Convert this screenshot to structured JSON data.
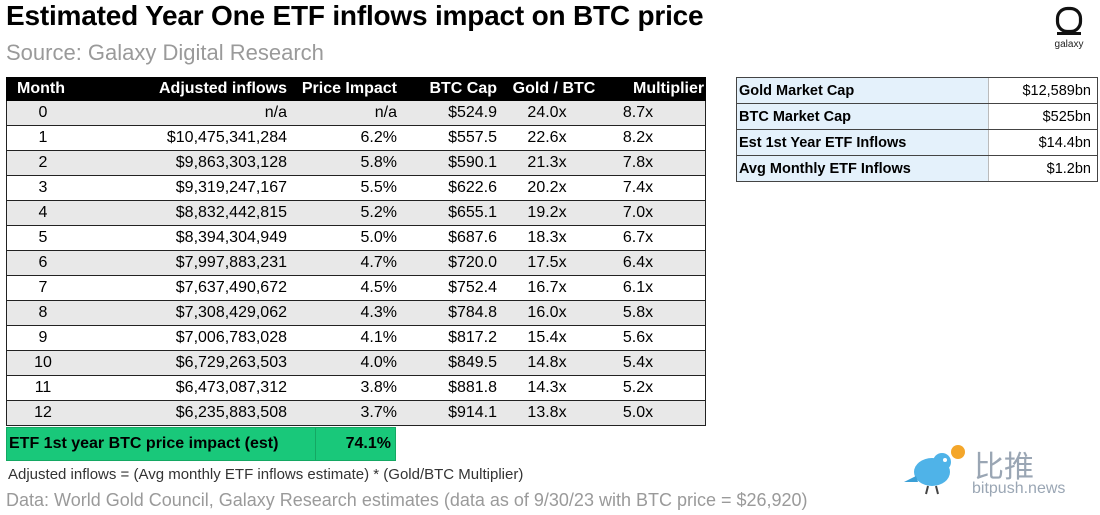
{
  "title": "Estimated Year One ETF inflows impact on BTC price",
  "subtitle": "Source: Galaxy Digital Research",
  "logo": {
    "icon": "galaxy-logo-icon",
    "label": "galaxy"
  },
  "table": {
    "headers": [
      "Month",
      "Adjusted inflows",
      "Price Impact",
      "BTC Cap",
      "Gold / BTC",
      "Multiplier"
    ],
    "rows": [
      [
        "0",
        "n/a",
        "n/a",
        "$524.9",
        "24.0x",
        "8.7x"
      ],
      [
        "1",
        "$10,475,341,284",
        "6.2%",
        "$557.5",
        "22.6x",
        "8.2x"
      ],
      [
        "2",
        "$9,863,303,128",
        "5.8%",
        "$590.1",
        "21.3x",
        "7.8x"
      ],
      [
        "3",
        "$9,319,247,167",
        "5.5%",
        "$622.6",
        "20.2x",
        "7.4x"
      ],
      [
        "4",
        "$8,832,442,815",
        "5.2%",
        "$655.1",
        "19.2x",
        "7.0x"
      ],
      [
        "5",
        "$8,394,304,949",
        "5.0%",
        "$687.6",
        "18.3x",
        "6.7x"
      ],
      [
        "6",
        "$7,997,883,231",
        "4.7%",
        "$720.0",
        "17.5x",
        "6.4x"
      ],
      [
        "7",
        "$7,637,490,672",
        "4.5%",
        "$752.4",
        "16.7x",
        "6.1x"
      ],
      [
        "8",
        "$7,308,429,062",
        "4.3%",
        "$784.8",
        "16.0x",
        "5.8x"
      ],
      [
        "9",
        "$7,006,783,028",
        "4.1%",
        "$817.2",
        "15.4x",
        "5.6x"
      ],
      [
        "10",
        "$6,729,263,503",
        "4.0%",
        "$849.5",
        "14.8x",
        "5.4x"
      ],
      [
        "11",
        "$6,473,087,312",
        "3.8%",
        "$881.8",
        "14.3x",
        "5.2x"
      ],
      [
        "12",
        "$6,235,883,508",
        "3.7%",
        "$914.1",
        "13.8x",
        "5.0x"
      ]
    ]
  },
  "impact": {
    "label": "ETF 1st year BTC price impact (est)",
    "value": "74.1%"
  },
  "side_table": [
    {
      "key": "Gold Market Cap",
      "value": "$12,589bn"
    },
    {
      "key": "BTC Market Cap",
      "value": "$525bn"
    },
    {
      "key": "Est 1st Year ETF Inflows",
      "value": "$14.4bn"
    },
    {
      "key": "Avg Monthly ETF Inflows",
      "value": "$1.2bn"
    }
  ],
  "note": "Adjusted inflows = (Avg monthly ETF inflows estimate) * (Gold/BTC Multiplier)",
  "data_source": "Data: World Gold Council, Galaxy Research estimates (data as of 9/30/23 with BTC price = $26,920)",
  "watermark": {
    "icon": "bird-icon",
    "cn": "比推",
    "en": "bitpush.news"
  },
  "colors": {
    "header_bg": "#000000",
    "alt_row": "#e8e8e8",
    "impact_green": "#19c87a",
    "side_key_bg": "#e4f1fb",
    "muted": "#9a9a9a"
  }
}
